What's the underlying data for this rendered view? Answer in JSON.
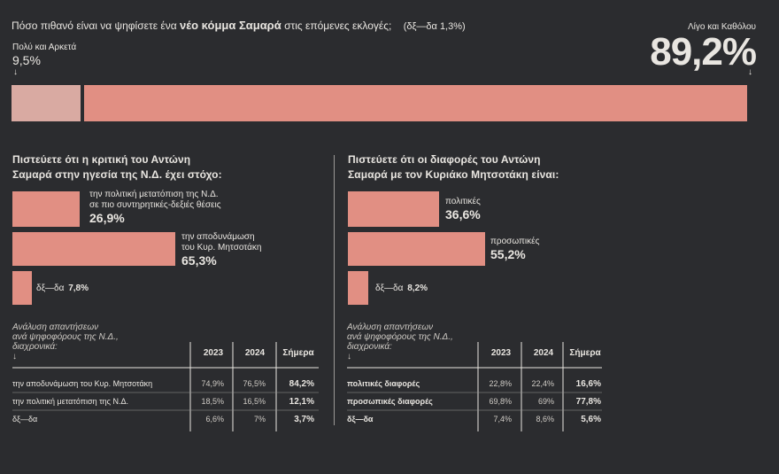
{
  "colors": {
    "background": "#2b2c2f",
    "bar_main": "#e18f83",
    "bar_light": "#d9aaa2",
    "text": "#e9e6e1",
    "divider": "#9c9a97"
  },
  "top": {
    "question_pre": "Πόσο πιθανό είναι να ψηφίσετε ένα ",
    "question_bold": "νέο κόμμα Σαμαρά",
    "question_post": " στις επόμενες εκλογές;",
    "undecided": "(δξ—δα 1,3%)",
    "left_label": "Πολύ και Αρκετά",
    "left_value": "9,5%",
    "right_label": "Λίγο και Καθόλου",
    "right_value": "89,2%",
    "arrow": "↓"
  },
  "left_panel": {
    "title_line1": "Πιστεύετε ότι η κριτική του Αντώνη",
    "title_line2": "Σαμαρά στην ηγεσία της Ν.Δ. έχει στόχο:",
    "bars": [
      {
        "label_line1": "την πολιτική μετατόπιση της Ν.Δ.",
        "label_line2": "σε πιο συντηρητικές-δεξιές θέσεις",
        "value": "26,9%"
      },
      {
        "label_line1": "την αποδυνάμωση",
        "label_line2": "του Κυρ. Μητσοτάκη",
        "value": "65,3%"
      },
      {
        "label_line1": "δξ—δα",
        "label_line2": "",
        "value": "7,8%"
      }
    ],
    "table": {
      "caption_line1": "Ανάλυση απαντήσεων",
      "caption_line2": "ανά ψηφοφόρους της Ν.Δ.,",
      "caption_line3": "διαχρονικά:",
      "caption_arrow": "↓",
      "headers": [
        "2023",
        "2024",
        "Σήμερα"
      ],
      "rows": [
        {
          "label": "την αποδυνάμωση του Κυρ. Μητσοτάκη",
          "v2023": "74,9%",
          "v2024": "76,5%",
          "today": "84,2%"
        },
        {
          "label": "την πολιτική μετατόπιση της Ν.Δ.",
          "v2023": "18,5%",
          "v2024": "16,5%",
          "today": "12,1%"
        },
        {
          "label": "δξ—δα",
          "v2023": "6,6%",
          "v2024": "7%",
          "today": "3,7%"
        }
      ]
    }
  },
  "right_panel": {
    "title_line1": "Πιστεύετε ότι οι διαφορές του Αντώνη",
    "title_line2": "Σαμαρά με τον Κυριάκο Μητσοτάκη είναι:",
    "bars": [
      {
        "label_line1": "πολιτικές",
        "value": "36,6%"
      },
      {
        "label_line1": "προσωπικές",
        "value": "55,2%"
      },
      {
        "label_line1": "δξ—δα",
        "value": "8,2%"
      }
    ],
    "table": {
      "caption_line1": "Ανάλυση απαντήσεων",
      "caption_line2": "ανά ψηφοφόρους της Ν.Δ.,",
      "caption_line3": "διαχρονικά:",
      "caption_arrow": "↓",
      "headers": [
        "2023",
        "2024",
        "Σήμερα"
      ],
      "rows": [
        {
          "label": "πολιτικές διαφορές",
          "v2023": "22,8%",
          "v2024": "22,4%",
          "today": "16,6%"
        },
        {
          "label": "προσωπικές διαφορές",
          "v2023": "69,8%",
          "v2024": "69%",
          "today": "77,8%"
        },
        {
          "label": "δξ—δα",
          "v2023": "7,4%",
          "v2024": "8,6%",
          "today": "5,6%"
        }
      ]
    }
  },
  "chart_data": [
    {
      "type": "bar",
      "orientation": "horizontal-stacked",
      "categories": [
        "Πολύ και Αρκετά",
        "Λίγο και Καθόλου"
      ],
      "values": [
        9.5,
        89.2
      ],
      "title": "Πόσο πιθανό είναι να ψηφίσετε ένα νέο κόμμα Σαμαρά στις επόμενες εκλογές;",
      "annotation": "(δξ—δα 1,3%)"
    },
    {
      "type": "bar",
      "orientation": "horizontal",
      "title": "Πιστεύετε ότι η κριτική του Αντώνη Σαμαρά στην ηγεσία της Ν.Δ. έχει στόχο:",
      "categories": [
        "την πολιτική μετατόπιση της Ν.Δ. σε πιο συντηρητικές-δεξιές θέσεις",
        "την αποδυνάμωση του Κυρ. Μητσοτάκη",
        "δξ—δα"
      ],
      "values": [
        26.9,
        65.3,
        7.8
      ]
    },
    {
      "type": "bar",
      "orientation": "horizontal",
      "title": "Πιστεύετε ότι οι διαφορές του Αντώνη Σαμαρά με τον Κυριάκο Μητσοτάκη είναι:",
      "categories": [
        "πολιτικές",
        "προσωπικές",
        "δξ—δα"
      ],
      "values": [
        36.6,
        55.2,
        8.2
      ]
    },
    {
      "type": "table",
      "columns": [
        "2023",
        "2024",
        "Σήμερα"
      ],
      "rows": [
        {
          "label": "την αποδυνάμωση του Κυρ. Μητσοτάκη",
          "values": [
            74.9,
            76.5,
            84.2
          ]
        },
        {
          "label": "την πολιτική μετατόπιση της Ν.Δ.",
          "values": [
            18.5,
            16.5,
            12.1
          ]
        },
        {
          "label": "δξ—δα",
          "values": [
            6.6,
            7,
            3.7
          ]
        }
      ]
    },
    {
      "type": "table",
      "columns": [
        "2023",
        "2024",
        "Σήμερα"
      ],
      "rows": [
        {
          "label": "πολιτικές διαφορές",
          "values": [
            22.8,
            22.4,
            16.6
          ]
        },
        {
          "label": "προσωπικές διαφορές",
          "values": [
            69.8,
            69,
            77.8
          ]
        },
        {
          "label": "δξ—δα",
          "values": [
            7.4,
            8.6,
            5.6
          ]
        }
      ]
    }
  ]
}
